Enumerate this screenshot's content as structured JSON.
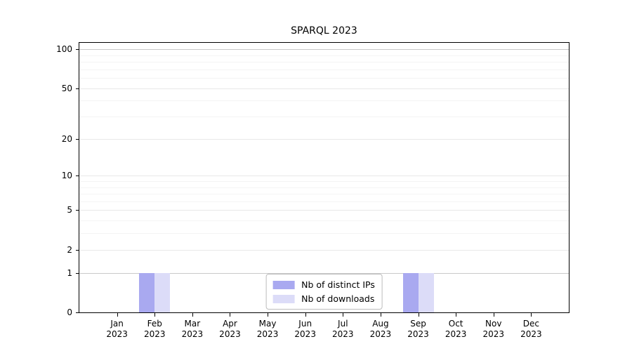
{
  "chart_data": {
    "type": "bar",
    "title": "SPARQL 2023",
    "year": "2023",
    "months": [
      "Jan",
      "Feb",
      "Mar",
      "Apr",
      "May",
      "Jun",
      "Jul",
      "Aug",
      "Sep",
      "Oct",
      "Nov",
      "Dec"
    ],
    "series": [
      {
        "name": "Nb of distinct IPs",
        "color": "#a9a9f0",
        "values": [
          0,
          1,
          0,
          0,
          0,
          0,
          0,
          0,
          1,
          0,
          0,
          0
        ]
      },
      {
        "name": "Nb of downloads",
        "color": "#dcdcf8",
        "values": [
          0,
          1,
          0,
          0,
          0,
          0,
          0,
          0,
          1,
          0,
          0,
          0
        ]
      }
    ],
    "y_axis": {
      "scale": "log1p",
      "ticks": [
        0,
        1,
        2,
        5,
        10,
        20,
        50,
        100
      ],
      "strong_gridlines": [
        1,
        100
      ],
      "minor_gridlines": [
        3,
        4,
        6,
        7,
        8,
        9,
        30,
        40,
        60,
        70,
        80,
        90
      ],
      "ylim": [
        0,
        112
      ]
    },
    "x_axis": {
      "tick_label_format": "month over year"
    },
    "legend": {
      "position": "lower center"
    },
    "grid": true,
    "background": "#ffffff"
  }
}
